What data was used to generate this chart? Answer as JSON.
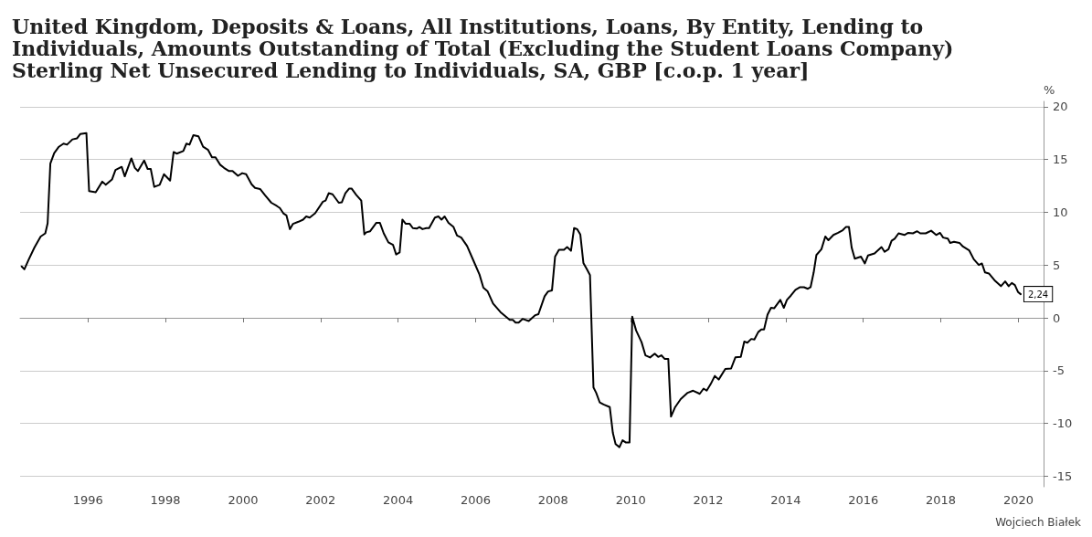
{
  "chart_data": {
    "type": "line",
    "title": "United Kingdom, Deposits & Loans, All Institutions, Loans, By Entity, Lending to Individuals, Amounts Outstanding of Total (Excluding the Student Loans Company) Sterling Net Unsecured Lending to Individuals, SA, GBP [c.o.p. 1 year]",
    "ylabel": "%",
    "series": [
      {
        "color": "#000000",
        "x": [
          1994.29,
          1994.36,
          1994.47,
          1994.62,
          1994.78,
          1994.9,
          1994.96,
          1995.03,
          1995.13,
          1995.25,
          1995.37,
          1995.46,
          1995.6,
          1995.72,
          1995.8,
          1995.96,
          1996.03,
          1996.2,
          1996.37,
          1996.46,
          1996.62,
          1996.71,
          1996.87,
          1996.95,
          1997.12,
          1997.21,
          1997.29,
          1997.45,
          1997.54,
          1997.62,
          1997.71,
          1997.85,
          1997.96,
          1998.12,
          1998.21,
          1998.29,
          1998.46,
          1998.54,
          1998.62,
          1998.72,
          1998.85,
          1998.97,
          1999.1,
          1999.2,
          1999.29,
          1999.41,
          1999.51,
          1999.64,
          1999.73,
          1999.87,
          1999.98,
          2000.08,
          2000.22,
          2000.31,
          2000.44,
          2000.57,
          2000.73,
          2000.87,
          2000.95,
          2001.04,
          2001.12,
          2001.21,
          2001.29,
          2001.43,
          2001.55,
          2001.63,
          2001.72,
          2001.86,
          2002.06,
          2002.13,
          2002.21,
          2002.31,
          2002.47,
          2002.55,
          2002.64,
          2002.74,
          2002.8,
          2002.92,
          2003.05,
          2003.13,
          2003.18,
          2003.28,
          2003.44,
          2003.53,
          2003.63,
          2003.75,
          2003.87,
          2003.95,
          2004.04,
          2004.11,
          2004.2,
          2004.3,
          2004.38,
          2004.48,
          2004.55,
          2004.63,
          2004.73,
          2004.8,
          2004.95,
          2005.04,
          2005.12,
          2005.2,
          2005.3,
          2005.43,
          2005.52,
          2005.63,
          2005.78,
          2005.94,
          2006.1,
          2006.2,
          2006.31,
          2006.45,
          2006.64,
          2006.88,
          2006.96,
          2007.03,
          2007.11,
          2007.21,
          2007.37,
          2007.54,
          2007.62,
          2007.78,
          2007.87,
          2007.97,
          2008.05,
          2008.15,
          2008.28,
          2008.36,
          2008.46,
          2008.54,
          2008.62,
          2008.7,
          2008.78,
          2008.87,
          2008.95,
          2009.04,
          2009.11,
          2009.2,
          2009.3,
          2009.46,
          2009.54,
          2009.61,
          2009.71,
          2009.79,
          2009.87,
          2009.97,
          2010.04,
          2010.14,
          2010.28,
          2010.38,
          2010.5,
          2010.62,
          2010.71,
          2010.79,
          2010.88,
          2010.97,
          2011.04,
          2011.14,
          2011.29,
          2011.47,
          2011.61,
          2011.78,
          2011.88,
          2011.96,
          2012.06,
          2012.17,
          2012.27,
          2012.44,
          2012.59,
          2012.7,
          2012.84,
          2012.93,
          2013.01,
          2013.11,
          2013.19,
          2013.29,
          2013.37,
          2013.44,
          2013.53,
          2013.62,
          2013.7,
          2013.86,
          2013.95,
          2014.03,
          2014.13,
          2014.25,
          2014.37,
          2014.47,
          2014.57,
          2014.64,
          2014.72,
          2014.79,
          2014.92,
          2015.02,
          2015.1,
          2015.23,
          2015.35,
          2015.47,
          2015.55,
          2015.63,
          2015.7,
          2015.78,
          2015.94,
          2016.04,
          2016.12,
          2016.29,
          2016.47,
          2016.55,
          2016.65,
          2016.73,
          2016.81,
          2016.91,
          2017.06,
          2017.16,
          2017.28,
          2017.39,
          2017.47,
          2017.61,
          2017.75,
          2017.88,
          2017.98,
          2018.06,
          2018.18,
          2018.24,
          2018.34,
          2018.48,
          2018.57,
          2018.73,
          2018.85,
          2018.98,
          2019.06,
          2019.14,
          2019.24,
          2019.4,
          2019.55,
          2019.66,
          2019.75,
          2019.83,
          2019.91,
          2019.99,
          2020.06
        ],
        "values": [
          4.86,
          4.6,
          5.5,
          6.66,
          7.7,
          8.0,
          8.95,
          14.6,
          15.6,
          16.2,
          16.5,
          16.4,
          16.9,
          17.0,
          17.4,
          17.5,
          12.0,
          11.9,
          12.9,
          12.6,
          13.1,
          14.0,
          14.3,
          13.4,
          15.1,
          14.2,
          13.9,
          14.9,
          14.1,
          14.1,
          12.4,
          12.6,
          13.6,
          13.0,
          15.7,
          15.55,
          15.8,
          16.5,
          16.4,
          17.3,
          17.2,
          16.2,
          15.9,
          15.2,
          15.2,
          14.5,
          14.2,
          13.9,
          13.9,
          13.45,
          13.7,
          13.6,
          12.65,
          12.3,
          12.2,
          11.6,
          10.9,
          10.6,
          10.4,
          9.9,
          9.7,
          8.4,
          8.9,
          9.1,
          9.3,
          9.6,
          9.5,
          9.9,
          11.0,
          11.1,
          11.8,
          11.7,
          10.9,
          10.95,
          11.8,
          12.25,
          12.25,
          11.65,
          11.1,
          7.9,
          8.1,
          8.2,
          9.0,
          9.0,
          8.0,
          7.15,
          6.9,
          6.0,
          6.2,
          9.3,
          8.9,
          8.9,
          8.5,
          8.45,
          8.6,
          8.4,
          8.5,
          8.5,
          9.5,
          9.6,
          9.3,
          9.6,
          9.0,
          8.6,
          7.8,
          7.6,
          6.8,
          5.45,
          4.1,
          2.85,
          2.5,
          1.35,
          0.55,
          -0.2,
          -0.2,
          -0.45,
          -0.45,
          -0.1,
          -0.3,
          0.25,
          0.35,
          2.05,
          2.5,
          2.6,
          5.8,
          6.45,
          6.45,
          6.7,
          6.35,
          8.5,
          8.4,
          7.9,
          5.2,
          4.6,
          4.05,
          -6.6,
          -7.1,
          -8.0,
          -8.2,
          -8.45,
          -10.9,
          -11.95,
          -12.25,
          -11.6,
          -11.8,
          -11.8,
          0.1,
          -1.2,
          -2.3,
          -3.55,
          -3.75,
          -3.4,
          -3.7,
          -3.55,
          -3.9,
          -3.9,
          -9.35,
          -8.5,
          -7.7,
          -7.1,
          -6.9,
          -7.2,
          -6.7,
          -6.9,
          -6.3,
          -5.5,
          -5.85,
          -4.85,
          -4.8,
          -3.75,
          -3.7,
          -2.25,
          -2.35,
          -2.0,
          -2.05,
          -1.35,
          -1.1,
          -1.1,
          0.3,
          0.95,
          0.9,
          1.7,
          0.95,
          1.7,
          2.1,
          2.65,
          2.9,
          2.9,
          2.75,
          2.9,
          4.3,
          5.95,
          6.5,
          7.7,
          7.35,
          7.85,
          8.05,
          8.3,
          8.6,
          8.6,
          6.65,
          5.6,
          5.8,
          5.15,
          5.9,
          6.1,
          6.7,
          6.25,
          6.5,
          7.3,
          7.5,
          8.0,
          7.85,
          8.05,
          8.0,
          8.2,
          8.0,
          8.0,
          8.25,
          7.85,
          8.05,
          7.6,
          7.5,
          7.1,
          7.2,
          7.1,
          6.75,
          6.4,
          5.55,
          5.0,
          5.15,
          4.3,
          4.2,
          3.5,
          3.0,
          3.45,
          3.0,
          3.3,
          3.1,
          2.45,
          2.24
        ]
      }
    ],
    "xlim": [
      1994.25,
      2020.65
    ],
    "xticks": [
      1996,
      1998,
      2000,
      2002,
      2004,
      2006,
      2008,
      2010,
      2012,
      2014,
      2016,
      2018,
      2020
    ],
    "ylim": [
      -16,
      20.5
    ],
    "yticks": [
      -15,
      -10,
      -5,
      0,
      5,
      10,
      15,
      20
    ],
    "grid": "y",
    "marker": "none",
    "line_style": "solid",
    "annotations": [
      {
        "text": "2,24",
        "x": 2020.06,
        "y": 2.24
      },
      "Wojciech Białek"
    ]
  }
}
